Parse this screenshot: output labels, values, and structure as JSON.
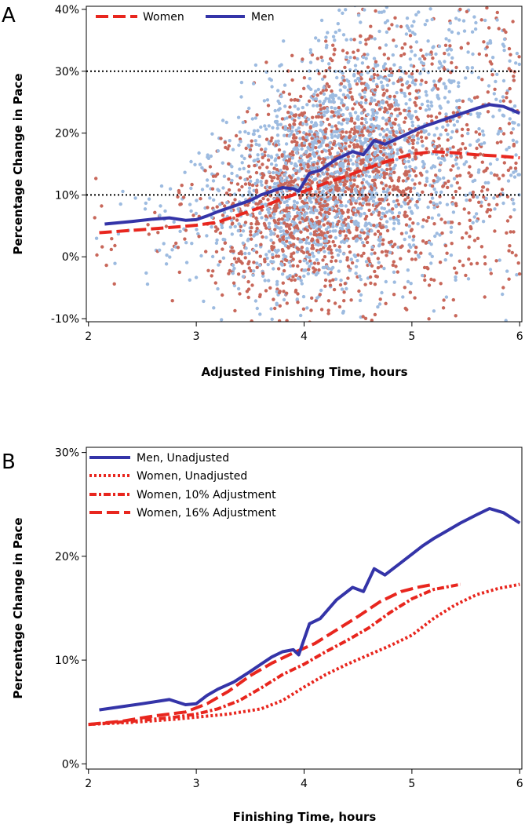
{
  "chart_data": [
    {
      "type": "scatter",
      "panel_label": "A",
      "xlabel": "Adjusted Finishing Time, hours",
      "ylabel": "Percentage Change in Pace",
      "xlim": [
        1.98,
        6.02
      ],
      "ylim": [
        -10.5,
        40.5
      ],
      "x_ticks": [
        2,
        3,
        4,
        5,
        6
      ],
      "x_tick_labels": [
        "2",
        "3",
        "4",
        "5",
        "6"
      ],
      "y_ticks": [
        -10,
        0,
        10,
        20,
        30,
        40
      ],
      "y_tick_labels": [
        "-10%",
        "0%",
        "10%",
        "20%",
        "30%",
        "40%"
      ],
      "reference_lines": [
        10,
        30
      ],
      "legend_position": "top-left",
      "colors": {
        "women_points": "#c8675a",
        "men_points": "#9dbbe0",
        "women_line": "#e8261e",
        "men_line": "#3434a8",
        "reference": "#000000"
      },
      "series": [
        {
          "name": "Women",
          "style": "dashed",
          "x": [
            2.1,
            2.5,
            2.8,
            3.0,
            3.2,
            3.4,
            3.6,
            3.8,
            4.0,
            4.2,
            4.4,
            4.6,
            4.8,
            5.0,
            5.2,
            5.4,
            5.6,
            5.8,
            6.0
          ],
          "y": [
            3.9,
            4.4,
            4.8,
            5.1,
            5.6,
            6.8,
            8.0,
            9.4,
            10.6,
            11.9,
            13.1,
            14.4,
            15.6,
            16.6,
            17.0,
            16.8,
            16.5,
            16.3,
            16.0
          ]
        },
        {
          "name": "Men",
          "style": "solid",
          "x": [
            2.15,
            2.4,
            2.6,
            2.75,
            2.9,
            3.0,
            3.1,
            3.2,
            3.3,
            3.4,
            3.5,
            3.6,
            3.7,
            3.8,
            3.9,
            3.95,
            4.05,
            4.15,
            4.3,
            4.45,
            4.55,
            4.65,
            4.75,
            4.85,
            5.0,
            5.1,
            5.2,
            5.3,
            5.45,
            5.6,
            5.72,
            5.85,
            6.0
          ],
          "y": [
            5.3,
            5.7,
            6.1,
            6.3,
            5.9,
            6.0,
            6.6,
            7.3,
            7.9,
            8.5,
            9.1,
            10.0,
            10.6,
            11.2,
            11.0,
            10.6,
            13.5,
            14.0,
            15.8,
            17.0,
            16.5,
            18.8,
            18.2,
            19.0,
            20.2,
            21.0,
            21.6,
            22.2,
            23.1,
            24.0,
            24.6,
            24.3,
            23.2
          ]
        }
      ],
      "scatter_note": "dense point cloud of individual finishers (women: red dots, men: light-blue dots)"
    },
    {
      "type": "line",
      "panel_label": "B",
      "xlabel": "Finishing Time, hours",
      "ylabel": "Percentage Change in Pace",
      "xlim": [
        1.98,
        6.02
      ],
      "ylim": [
        -0.5,
        30.5
      ],
      "x_ticks": [
        2,
        3,
        4,
        5,
        6
      ],
      "x_tick_labels": [
        "2",
        "3",
        "4",
        "5",
        "6"
      ],
      "y_ticks": [
        0,
        10,
        20,
        30
      ],
      "y_tick_labels": [
        "0%",
        "10%",
        "20%",
        "30%"
      ],
      "legend_position": "top-left",
      "colors": {
        "men_line": "#3434a8",
        "women_line": "#e8261e"
      },
      "series": [
        {
          "name": "Men, Unadjusted",
          "style": "solid",
          "color": "#3434a8",
          "x": [
            2.1,
            2.3,
            2.5,
            2.75,
            2.9,
            3.0,
            3.1,
            3.2,
            3.35,
            3.5,
            3.6,
            3.7,
            3.8,
            3.9,
            3.95,
            4.05,
            4.15,
            4.3,
            4.45,
            4.55,
            4.65,
            4.75,
            4.85,
            5.0,
            5.1,
            5.2,
            5.3,
            5.45,
            5.6,
            5.72,
            5.85,
            6.0
          ],
          "y": [
            5.2,
            5.5,
            5.8,
            6.2,
            5.7,
            5.8,
            6.6,
            7.2,
            7.9,
            8.9,
            9.6,
            10.3,
            10.8,
            11.0,
            10.5,
            13.5,
            14.0,
            15.8,
            17.0,
            16.6,
            18.8,
            18.2,
            19.0,
            20.2,
            21.0,
            21.7,
            22.3,
            23.2,
            24.0,
            24.6,
            24.2,
            23.2
          ]
        },
        {
          "name": "Women, Unadjusted",
          "style": "dotted",
          "color": "#e8261e",
          "x": [
            2.0,
            2.4,
            2.8,
            3.0,
            3.3,
            3.6,
            3.8,
            4.0,
            4.2,
            4.4,
            4.6,
            4.8,
            5.0,
            5.2,
            5.4,
            5.6,
            5.8,
            6.0
          ],
          "y": [
            3.8,
            4.0,
            4.3,
            4.5,
            4.8,
            5.3,
            6.1,
            7.4,
            8.6,
            9.6,
            10.5,
            11.4,
            12.4,
            14.0,
            15.3,
            16.3,
            16.9,
            17.3
          ]
        },
        {
          "name": "Women, 10% Adjustment",
          "style": "dashdot",
          "color": "#e8261e",
          "x": [
            2.0,
            2.4,
            2.8,
            3.0,
            3.2,
            3.4,
            3.6,
            3.8,
            4.0,
            4.2,
            4.4,
            4.6,
            4.8,
            5.0,
            5.2,
            5.45
          ],
          "y": [
            3.8,
            4.1,
            4.5,
            4.8,
            5.3,
            6.1,
            7.3,
            8.6,
            9.6,
            10.8,
            11.9,
            13.1,
            14.6,
            15.9,
            16.8,
            17.3
          ]
        },
        {
          "name": "Women, 16% Adjustment",
          "style": "dashed",
          "color": "#e8261e",
          "x": [
            2.0,
            2.3,
            2.6,
            2.9,
            3.1,
            3.3,
            3.5,
            3.7,
            3.9,
            4.1,
            4.3,
            4.5,
            4.7,
            4.9,
            5.05,
            5.2
          ],
          "y": [
            3.8,
            4.1,
            4.6,
            5.0,
            5.8,
            7.0,
            8.5,
            9.7,
            10.7,
            11.6,
            12.9,
            14.2,
            15.6,
            16.6,
            17.0,
            17.3
          ]
        }
      ]
    }
  ]
}
